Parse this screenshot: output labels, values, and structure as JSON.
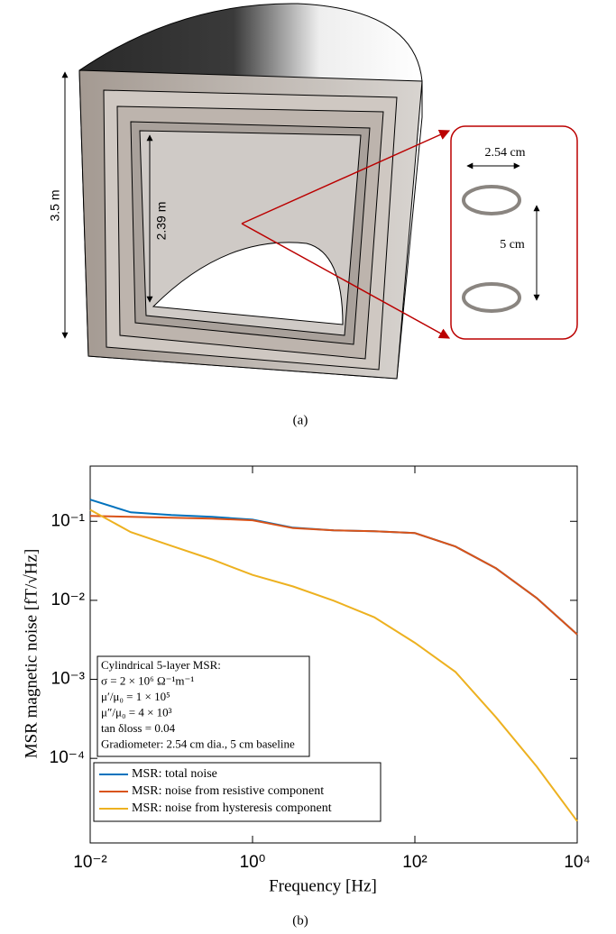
{
  "panel_a": {
    "height_outer": "3.5 m",
    "height_inner": "2.39 m",
    "coil_diameter": "2.54 cm",
    "baseline": "5 cm",
    "caption": "(a)"
  },
  "chart_data": {
    "type": "line",
    "caption": "(b)",
    "x_label": "Frequency [Hz]",
    "y_label": "MSR magnetic noise [fT/√Hz]",
    "log_x": true,
    "log_y": true,
    "xlim": [
      0.01,
      10000
    ],
    "ylim": [
      8.5e-06,
      0.5
    ],
    "xticks": [
      {
        "value": 0.01,
        "label": "10⁻²"
      },
      {
        "value": 1,
        "label": "10⁰"
      },
      {
        "value": 100,
        "label": "10²"
      },
      {
        "value": 10000,
        "label": "10⁴"
      }
    ],
    "yticks": [
      {
        "value": 0.0001,
        "label": "10⁻⁴"
      },
      {
        "value": 0.001,
        "label": "10⁻³"
      },
      {
        "value": 0.01,
        "label": "10⁻²"
      },
      {
        "value": 0.1,
        "label": "10⁻¹"
      }
    ],
    "x": [
      0.01,
      0.0316,
      0.1,
      0.316,
      1,
      3.16,
      10,
      31.6,
      100,
      316,
      1000,
      3162,
      10000
    ],
    "series": [
      {
        "name": "MSR: total noise",
        "color": "#0072bd",
        "values": [
          0.188,
          0.13,
          0.12,
          0.114,
          0.105,
          0.083,
          0.077,
          0.075,
          0.071,
          0.048,
          0.0254,
          0.0107,
          0.0037
        ]
      },
      {
        "name": "MSR: noise from resistive component",
        "color": "#d95319",
        "values": [
          0.117,
          0.114,
          0.111,
          0.108,
          0.103,
          0.082,
          0.077,
          0.075,
          0.071,
          0.048,
          0.0254,
          0.0107,
          0.0037
        ]
      },
      {
        "name": "MSR: noise from hysteresis component",
        "color": "#edb120",
        "values": [
          0.14,
          0.073,
          0.049,
          0.033,
          0.021,
          0.015,
          0.0099,
          0.0061,
          0.0029,
          0.00124,
          0.00033,
          7.9e-05,
          1.6e-05
        ]
      }
    ],
    "annotation": [
      "Cylindrical 5-layer MSR:",
      "σ = 2 × 10⁶ Ω⁻¹m⁻¹",
      "μ′/μ₀ = 1 × 10⁵",
      "μ″/μ₀ = 4 × 10³",
      "tan δloss = 0.04",
      "Gradiometer: 2.54 cm dia., 5 cm baseline"
    ]
  }
}
